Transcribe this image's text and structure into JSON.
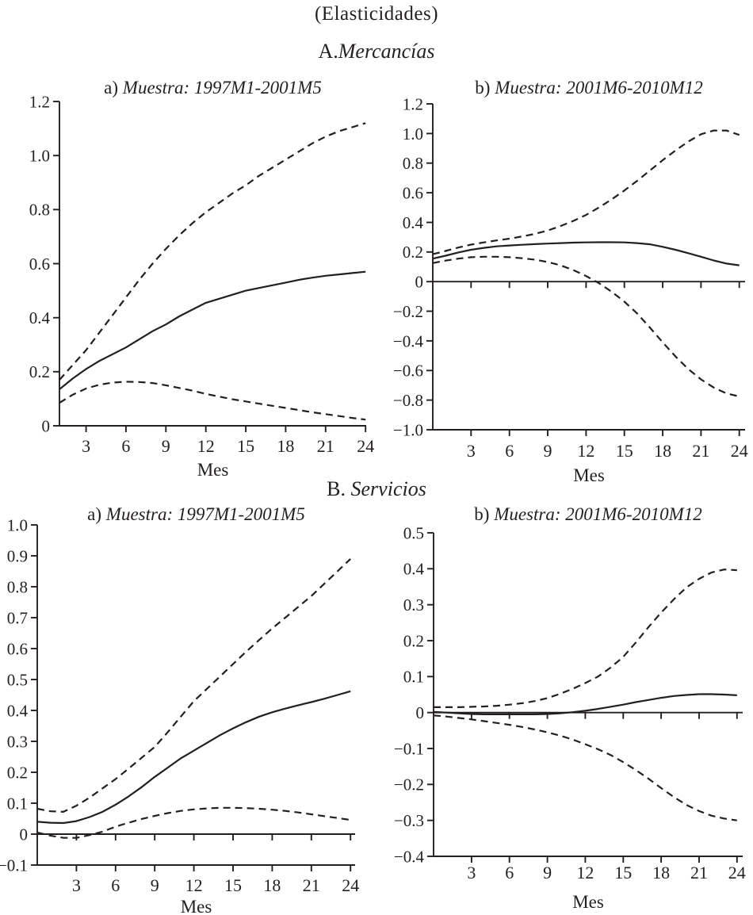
{
  "figure": {
    "title": "(Elasticidades)",
    "sections": [
      {
        "prefix": "A.",
        "name": "Mercancías"
      },
      {
        "prefix": "B. ",
        "name": "Servicios"
      }
    ]
  },
  "chart_data": [
    {
      "id": "a1",
      "type": "line",
      "section": "A. Mercancías",
      "title_prefix": "a) ",
      "title_italic": "Muestra: 1997M1-2001M5",
      "xlabel": "Mes",
      "grid": false,
      "legend": null,
      "ylim": [
        0,
        1.2
      ],
      "yticks": [
        {
          "v": 1.2,
          "label": "1.2"
        },
        {
          "v": 1.0,
          "label": "1.0"
        },
        {
          "v": 0.8,
          "label": "0.8"
        },
        {
          "v": 0.6,
          "label": "0.6"
        },
        {
          "v": 0.4,
          "label": "0.4"
        },
        {
          "v": 0.2,
          "label": "0.2"
        },
        {
          "v": 0,
          "label": "0"
        }
      ],
      "xticks": [
        {
          "v": 3,
          "label": "3"
        },
        {
          "v": 6,
          "label": "6"
        },
        {
          "v": 9,
          "label": "9"
        },
        {
          "v": 12,
          "label": "12"
        },
        {
          "v": 15,
          "label": "15"
        },
        {
          "v": 18,
          "label": "18"
        },
        {
          "v": 21,
          "label": "21"
        },
        {
          "v": 24,
          "label": "24"
        }
      ],
      "x": [
        1,
        2,
        3,
        4,
        5,
        6,
        7,
        8,
        9,
        10,
        11,
        12,
        13,
        14,
        15,
        16,
        17,
        18,
        19,
        20,
        21,
        22,
        23,
        24
      ],
      "series": [
        {
          "name": "upper-confidence-band",
          "line": "dashed",
          "values": [
            0.17,
            0.225,
            0.28,
            0.345,
            0.41,
            0.475,
            0.54,
            0.6,
            0.655,
            0.705,
            0.75,
            0.79,
            0.825,
            0.86,
            0.89,
            0.925,
            0.955,
            0.985,
            1.015,
            1.045,
            1.07,
            1.09,
            1.105,
            1.12
          ]
        },
        {
          "name": "lower-confidence-band",
          "line": "dashed",
          "values": [
            0.085,
            0.115,
            0.138,
            0.152,
            0.16,
            0.163,
            0.162,
            0.158,
            0.15,
            0.14,
            0.13,
            0.118,
            0.108,
            0.098,
            0.09,
            0.082,
            0.074,
            0.066,
            0.058,
            0.05,
            0.043,
            0.036,
            0.029,
            0.023
          ]
        },
        {
          "name": "elasticity-point-estimate",
          "line": "solid",
          "values": [
            0.135,
            0.175,
            0.21,
            0.24,
            0.265,
            0.29,
            0.32,
            0.35,
            0.375,
            0.405,
            0.43,
            0.455,
            0.47,
            0.485,
            0.5,
            0.51,
            0.52,
            0.53,
            0.54,
            0.548,
            0.555,
            0.56,
            0.565,
            0.57
          ]
        }
      ]
    },
    {
      "id": "a2",
      "type": "line",
      "section": "A. Mercancías",
      "title_prefix": "b) ",
      "title_italic": "Muestra: 2001M6-2010M12",
      "xlabel": "Mes",
      "grid": false,
      "legend": null,
      "ylim": [
        -1.0,
        1.2
      ],
      "yticks": [
        {
          "v": 1.2,
          "label": "1.2"
        },
        {
          "v": 1.0,
          "label": "1.0"
        },
        {
          "v": 0.8,
          "label": "0.8"
        },
        {
          "v": 0.6,
          "label": "0.6"
        },
        {
          "v": 0.4,
          "label": "0.4"
        },
        {
          "v": 0.2,
          "label": "0.2"
        },
        {
          "v": 0,
          "label": "0"
        },
        {
          "v": -0.2,
          "label": "−0.2"
        },
        {
          "v": -0.4,
          "label": "−0.4"
        },
        {
          "v": -0.6,
          "label": "−0.6"
        },
        {
          "v": -0.8,
          "label": "−0.8"
        },
        {
          "v": -1.0,
          "label": "−1.0"
        }
      ],
      "xticks": [
        {
          "v": 3,
          "label": "3"
        },
        {
          "v": 6,
          "label": "6"
        },
        {
          "v": 9,
          "label": "9"
        },
        {
          "v": 12,
          "label": "12"
        },
        {
          "v": 15,
          "label": "15"
        },
        {
          "v": 18,
          "label": "18"
        },
        {
          "v": 21,
          "label": "21"
        },
        {
          "v": 24,
          "label": "24"
        }
      ],
      "x": [
        0,
        1,
        2,
        3,
        4,
        5,
        6,
        7,
        8,
        9,
        10,
        11,
        12,
        13,
        14,
        15,
        16,
        17,
        18,
        19,
        20,
        21,
        22,
        23,
        24
      ],
      "series": [
        {
          "name": "upper-confidence-band",
          "line": "dashed",
          "values": [
            0.185,
            0.207,
            0.23,
            0.25,
            0.265,
            0.278,
            0.29,
            0.305,
            0.322,
            0.345,
            0.375,
            0.41,
            0.45,
            0.5,
            0.555,
            0.615,
            0.68,
            0.75,
            0.82,
            0.885,
            0.945,
            0.995,
            1.02,
            1.02,
            0.99
          ]
        },
        {
          "name": "lower-confidence-band",
          "line": "dashed",
          "values": [
            0.125,
            0.142,
            0.155,
            0.165,
            0.168,
            0.168,
            0.165,
            0.158,
            0.148,
            0.132,
            0.11,
            0.078,
            0.038,
            -0.01,
            -0.068,
            -0.135,
            -0.215,
            -0.31,
            -0.41,
            -0.505,
            -0.59,
            -0.66,
            -0.715,
            -0.755,
            -0.775
          ]
        },
        {
          "name": "elasticity-point-estimate",
          "line": "solid",
          "values": [
            0.155,
            0.175,
            0.197,
            0.215,
            0.228,
            0.238,
            0.244,
            0.249,
            0.253,
            0.257,
            0.26,
            0.263,
            0.265,
            0.266,
            0.266,
            0.265,
            0.26,
            0.252,
            0.235,
            0.215,
            0.192,
            0.168,
            0.143,
            0.122,
            0.11
          ]
        }
      ]
    },
    {
      "id": "b1",
      "type": "line",
      "section": "B. Servicios",
      "title_prefix": "a) ",
      "title_italic": "Muestra: 1997M1-2001M5",
      "xlabel": "Mes",
      "grid": false,
      "legend": null,
      "ylim": [
        -0.1,
        1.0
      ],
      "yticks": [
        {
          "v": 1.0,
          "label": "1.0"
        },
        {
          "v": 0.9,
          "label": "0.9"
        },
        {
          "v": 0.8,
          "label": "0.8"
        },
        {
          "v": 0.7,
          "label": "0.7"
        },
        {
          "v": 0.6,
          "label": "0.6"
        },
        {
          "v": 0.5,
          "label": "0.5"
        },
        {
          "v": 0.4,
          "label": "0.4"
        },
        {
          "v": 0.3,
          "label": "0.3"
        },
        {
          "v": 0.2,
          "label": "0.2"
        },
        {
          "v": 0.1,
          "label": "0.1"
        },
        {
          "v": 0,
          "label": "0"
        },
        {
          "v": -0.1,
          "label": "−0.1"
        }
      ],
      "xticks": [
        {
          "v": 3,
          "label": "3"
        },
        {
          "v": 6,
          "label": "6"
        },
        {
          "v": 9,
          "label": "9"
        },
        {
          "v": 12,
          "label": "12"
        },
        {
          "v": 15,
          "label": "15"
        },
        {
          "v": 18,
          "label": "18"
        },
        {
          "v": 21,
          "label": "21"
        },
        {
          "v": 24,
          "label": "24"
        }
      ],
      "x": [
        0,
        1,
        2,
        3,
        4,
        5,
        6,
        7,
        8,
        9,
        10,
        11,
        12,
        13,
        14,
        15,
        16,
        17,
        18,
        19,
        20,
        21,
        22,
        23,
        24
      ],
      "series": [
        {
          "name": "upper-confidence-band",
          "line": "dashed",
          "values": [
            0.082,
            0.074,
            0.072,
            0.092,
            0.118,
            0.148,
            0.178,
            0.212,
            0.247,
            0.282,
            0.33,
            0.38,
            0.43,
            0.47,
            0.51,
            0.55,
            0.59,
            0.628,
            0.665,
            0.7,
            0.735,
            0.77,
            0.81,
            0.85,
            0.89
          ]
        },
        {
          "name": "lower-confidence-band",
          "line": "dashed",
          "values": [
            0.005,
            -0.005,
            -0.012,
            -0.012,
            -0.003,
            0.008,
            0.024,
            0.037,
            0.049,
            0.059,
            0.068,
            0.075,
            0.08,
            0.083,
            0.085,
            0.085,
            0.084,
            0.082,
            0.079,
            0.075,
            0.07,
            0.064,
            0.058,
            0.052,
            0.046
          ]
        },
        {
          "name": "elasticity-point-estimate",
          "line": "solid",
          "values": [
            0.04,
            0.037,
            0.036,
            0.042,
            0.055,
            0.072,
            0.095,
            0.122,
            0.152,
            0.185,
            0.215,
            0.245,
            0.27,
            0.295,
            0.32,
            0.342,
            0.362,
            0.38,
            0.394,
            0.406,
            0.417,
            0.427,
            0.438,
            0.45,
            0.462
          ]
        }
      ]
    },
    {
      "id": "b2",
      "type": "line",
      "section": "B. Servicios",
      "title_prefix": "b) ",
      "title_italic": "Muestra: 2001M6-2010M12",
      "xlabel": "Mes",
      "grid": false,
      "legend": null,
      "ylim": [
        -0.4,
        0.5
      ],
      "yticks": [
        {
          "v": 0.5,
          "label": "0.5"
        },
        {
          "v": 0.4,
          "label": "0.4"
        },
        {
          "v": 0.3,
          "label": "0.3"
        },
        {
          "v": 0.2,
          "label": "0.2"
        },
        {
          "v": 0.1,
          "label": "0.1"
        },
        {
          "v": 0,
          "label": "0"
        },
        {
          "v": -0.1,
          "label": "−0.1"
        },
        {
          "v": -0.2,
          "label": "−0.2"
        },
        {
          "v": -0.3,
          "label": "−0.3"
        },
        {
          "v": -0.4,
          "label": "−0.4"
        }
      ],
      "xticks": [
        {
          "v": 3,
          "label": "3"
        },
        {
          "v": 6,
          "label": "6"
        },
        {
          "v": 9,
          "label": "9"
        },
        {
          "v": 12,
          "label": "12"
        },
        {
          "v": 15,
          "label": "15"
        },
        {
          "v": 18,
          "label": "18"
        },
        {
          "v": 21,
          "label": "21"
        },
        {
          "v": 24,
          "label": "24"
        }
      ],
      "x": [
        0,
        1,
        2,
        3,
        4,
        5,
        6,
        7,
        8,
        9,
        10,
        11,
        12,
        13,
        14,
        15,
        16,
        17,
        18,
        19,
        20,
        21,
        22,
        23,
        24
      ],
      "series": [
        {
          "name": "upper-confidence-band",
          "line": "dashed",
          "values": [
            0.015,
            0.015,
            0.015,
            0.016,
            0.017,
            0.019,
            0.022,
            0.026,
            0.032,
            0.04,
            0.052,
            0.066,
            0.082,
            0.1,
            0.125,
            0.155,
            0.195,
            0.238,
            0.278,
            0.315,
            0.348,
            0.372,
            0.39,
            0.398,
            0.396
          ]
        },
        {
          "name": "lower-confidence-band",
          "line": "dashed",
          "values": [
            -0.008,
            -0.011,
            -0.015,
            -0.019,
            -0.024,
            -0.029,
            -0.034,
            -0.04,
            -0.047,
            -0.055,
            -0.064,
            -0.075,
            -0.088,
            -0.102,
            -0.118,
            -0.138,
            -0.16,
            -0.184,
            -0.21,
            -0.235,
            -0.257,
            -0.274,
            -0.287,
            -0.295,
            -0.3
          ]
        },
        {
          "name": "elasticity-point-estimate",
          "line": "solid",
          "values": [
            0.002,
            0.0,
            -0.002,
            -0.004,
            -0.005,
            -0.005,
            -0.005,
            -0.005,
            -0.005,
            -0.004,
            -0.002,
            0.001,
            0.005,
            0.01,
            0.016,
            0.022,
            0.029,
            0.035,
            0.041,
            0.046,
            0.049,
            0.051,
            0.051,
            0.05,
            0.048
          ]
        }
      ]
    }
  ],
  "style": {
    "line_color": "#231f20",
    "background": "#ffffff"
  }
}
